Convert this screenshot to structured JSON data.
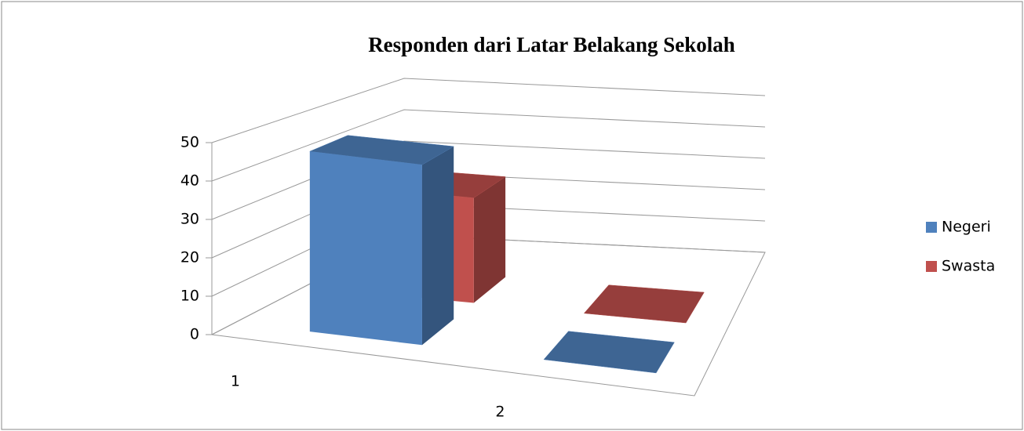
{
  "chart_data": {
    "type": "bar3d",
    "title": "Responden dari Latar Belakang Sekolah",
    "categories": [
      "1",
      "2"
    ],
    "series": [
      {
        "name": "Negeri",
        "color": "#4f81bd",
        "values": [
          48,
          0
        ]
      },
      {
        "name": "Swasta",
        "color": "#c0504d",
        "values": [
          30,
          0
        ]
      }
    ],
    "ylim": [
      0,
      50
    ],
    "yticks": [
      0,
      10,
      20,
      30,
      40,
      50
    ],
    "grid": true,
    "legend": "right"
  }
}
